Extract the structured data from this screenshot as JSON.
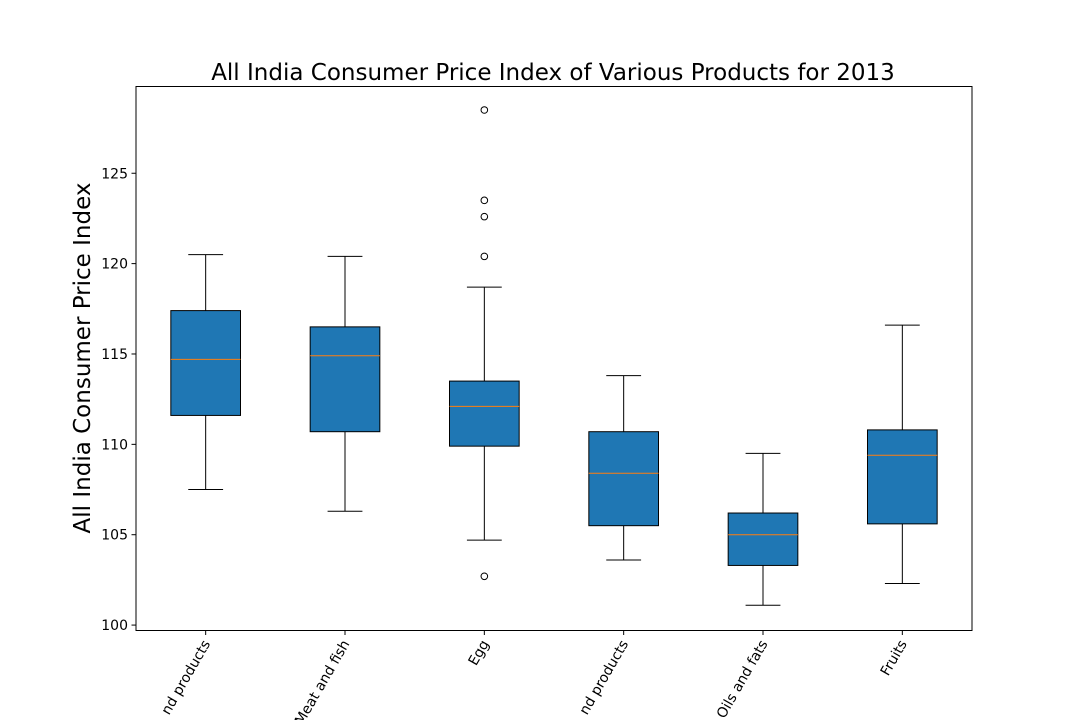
{
  "chart_data": {
    "type": "box",
    "title": "All India Consumer Price Index of Various Products for 2013",
    "xlabel": "",
    "ylabel": "All India Consumer Price Index",
    "ylim": [
      99.7,
      129.8
    ],
    "yticks": [
      100,
      105,
      110,
      115,
      120,
      125
    ],
    "grid": false,
    "box_color": "#1f77b4",
    "median_color": "#ff7f0e",
    "categories": [
      "Cereals and products",
      "Meat and fish",
      "Egg",
      "Milk and products",
      "Oils and fats",
      "Fruits"
    ],
    "visible_category_labels": [
      "nd products",
      "Meat and fish",
      "Egg",
      "nd products",
      "Oils and fats",
      "Fruits"
    ],
    "boxes": [
      {
        "q1": 111.6,
        "median": 114.7,
        "q3": 117.4,
        "whisker_low": 107.5,
        "whisker_high": 120.5,
        "outliers": []
      },
      {
        "q1": 110.7,
        "median": 114.9,
        "q3": 116.5,
        "whisker_low": 106.3,
        "whisker_high": 120.4,
        "outliers": []
      },
      {
        "q1": 109.9,
        "median": 112.1,
        "q3": 113.5,
        "whisker_low": 104.7,
        "whisker_high": 118.7,
        "outliers": [
          102.7,
          120.4,
          122.6,
          123.5,
          128.5
        ]
      },
      {
        "q1": 105.5,
        "median": 108.4,
        "q3": 110.7,
        "whisker_low": 103.6,
        "whisker_high": 113.8,
        "outliers": []
      },
      {
        "q1": 103.3,
        "median": 105.0,
        "q3": 106.2,
        "whisker_low": 101.1,
        "whisker_high": 109.5,
        "outliers": []
      },
      {
        "q1": 105.6,
        "median": 109.4,
        "q3": 110.8,
        "whisker_low": 102.3,
        "whisker_high": 116.6,
        "outliers": []
      }
    ]
  }
}
